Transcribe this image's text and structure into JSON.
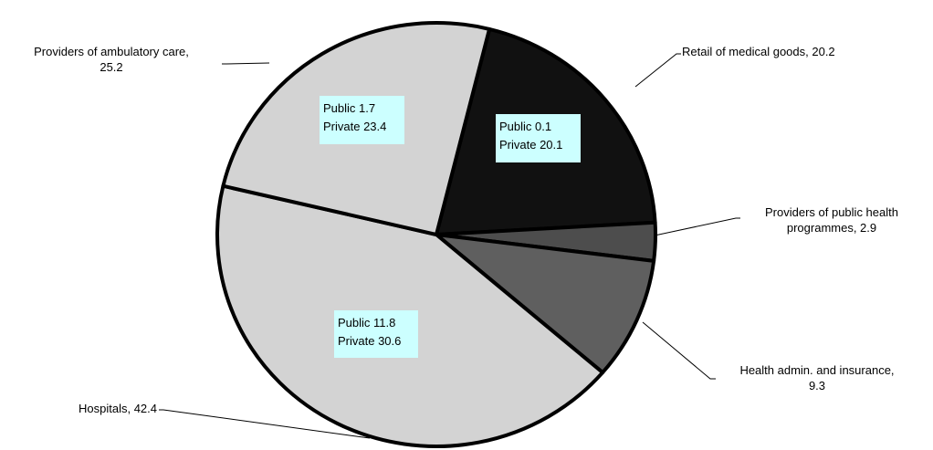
{
  "chart_data": {
    "type": "pie",
    "title": "",
    "slices": [
      {
        "label": "Retail of medical goods",
        "value": 20.2,
        "color": "#111111",
        "label_lines": [
          "Retail of medical goods, 20.2"
        ],
        "breakdown": [
          "Public 0.1",
          "Private 20.1"
        ]
      },
      {
        "label": "Providers of public health programmes",
        "value": 2.9,
        "color": "#4d4d4d",
        "label_lines": [
          "Providers of public health",
          "programmes, 2.9"
        ],
        "breakdown": []
      },
      {
        "label": "Health admin. and insurance",
        "value": 9.3,
        "color": "#5f5f5f",
        "label_lines": [
          "Health admin. and insurance,",
          "9.3"
        ],
        "breakdown": []
      },
      {
        "label": "Hospitals",
        "value": 42.4,
        "color": "#d3d3d3",
        "label_lines": [
          "Hospitals, 42.4"
        ],
        "breakdown": [
          "Public 11.8",
          "Private 30.6"
        ]
      },
      {
        "label": "Providers of ambulatory care",
        "value": 25.2,
        "color": "#d3d3d3",
        "label_lines": [
          "Providers of ambulatory care,",
          "25.2"
        ],
        "breakdown": [
          "Public 1.7",
          "Private 23.4"
        ]
      }
    ],
    "breakdown_box_color": "#ccffff"
  }
}
